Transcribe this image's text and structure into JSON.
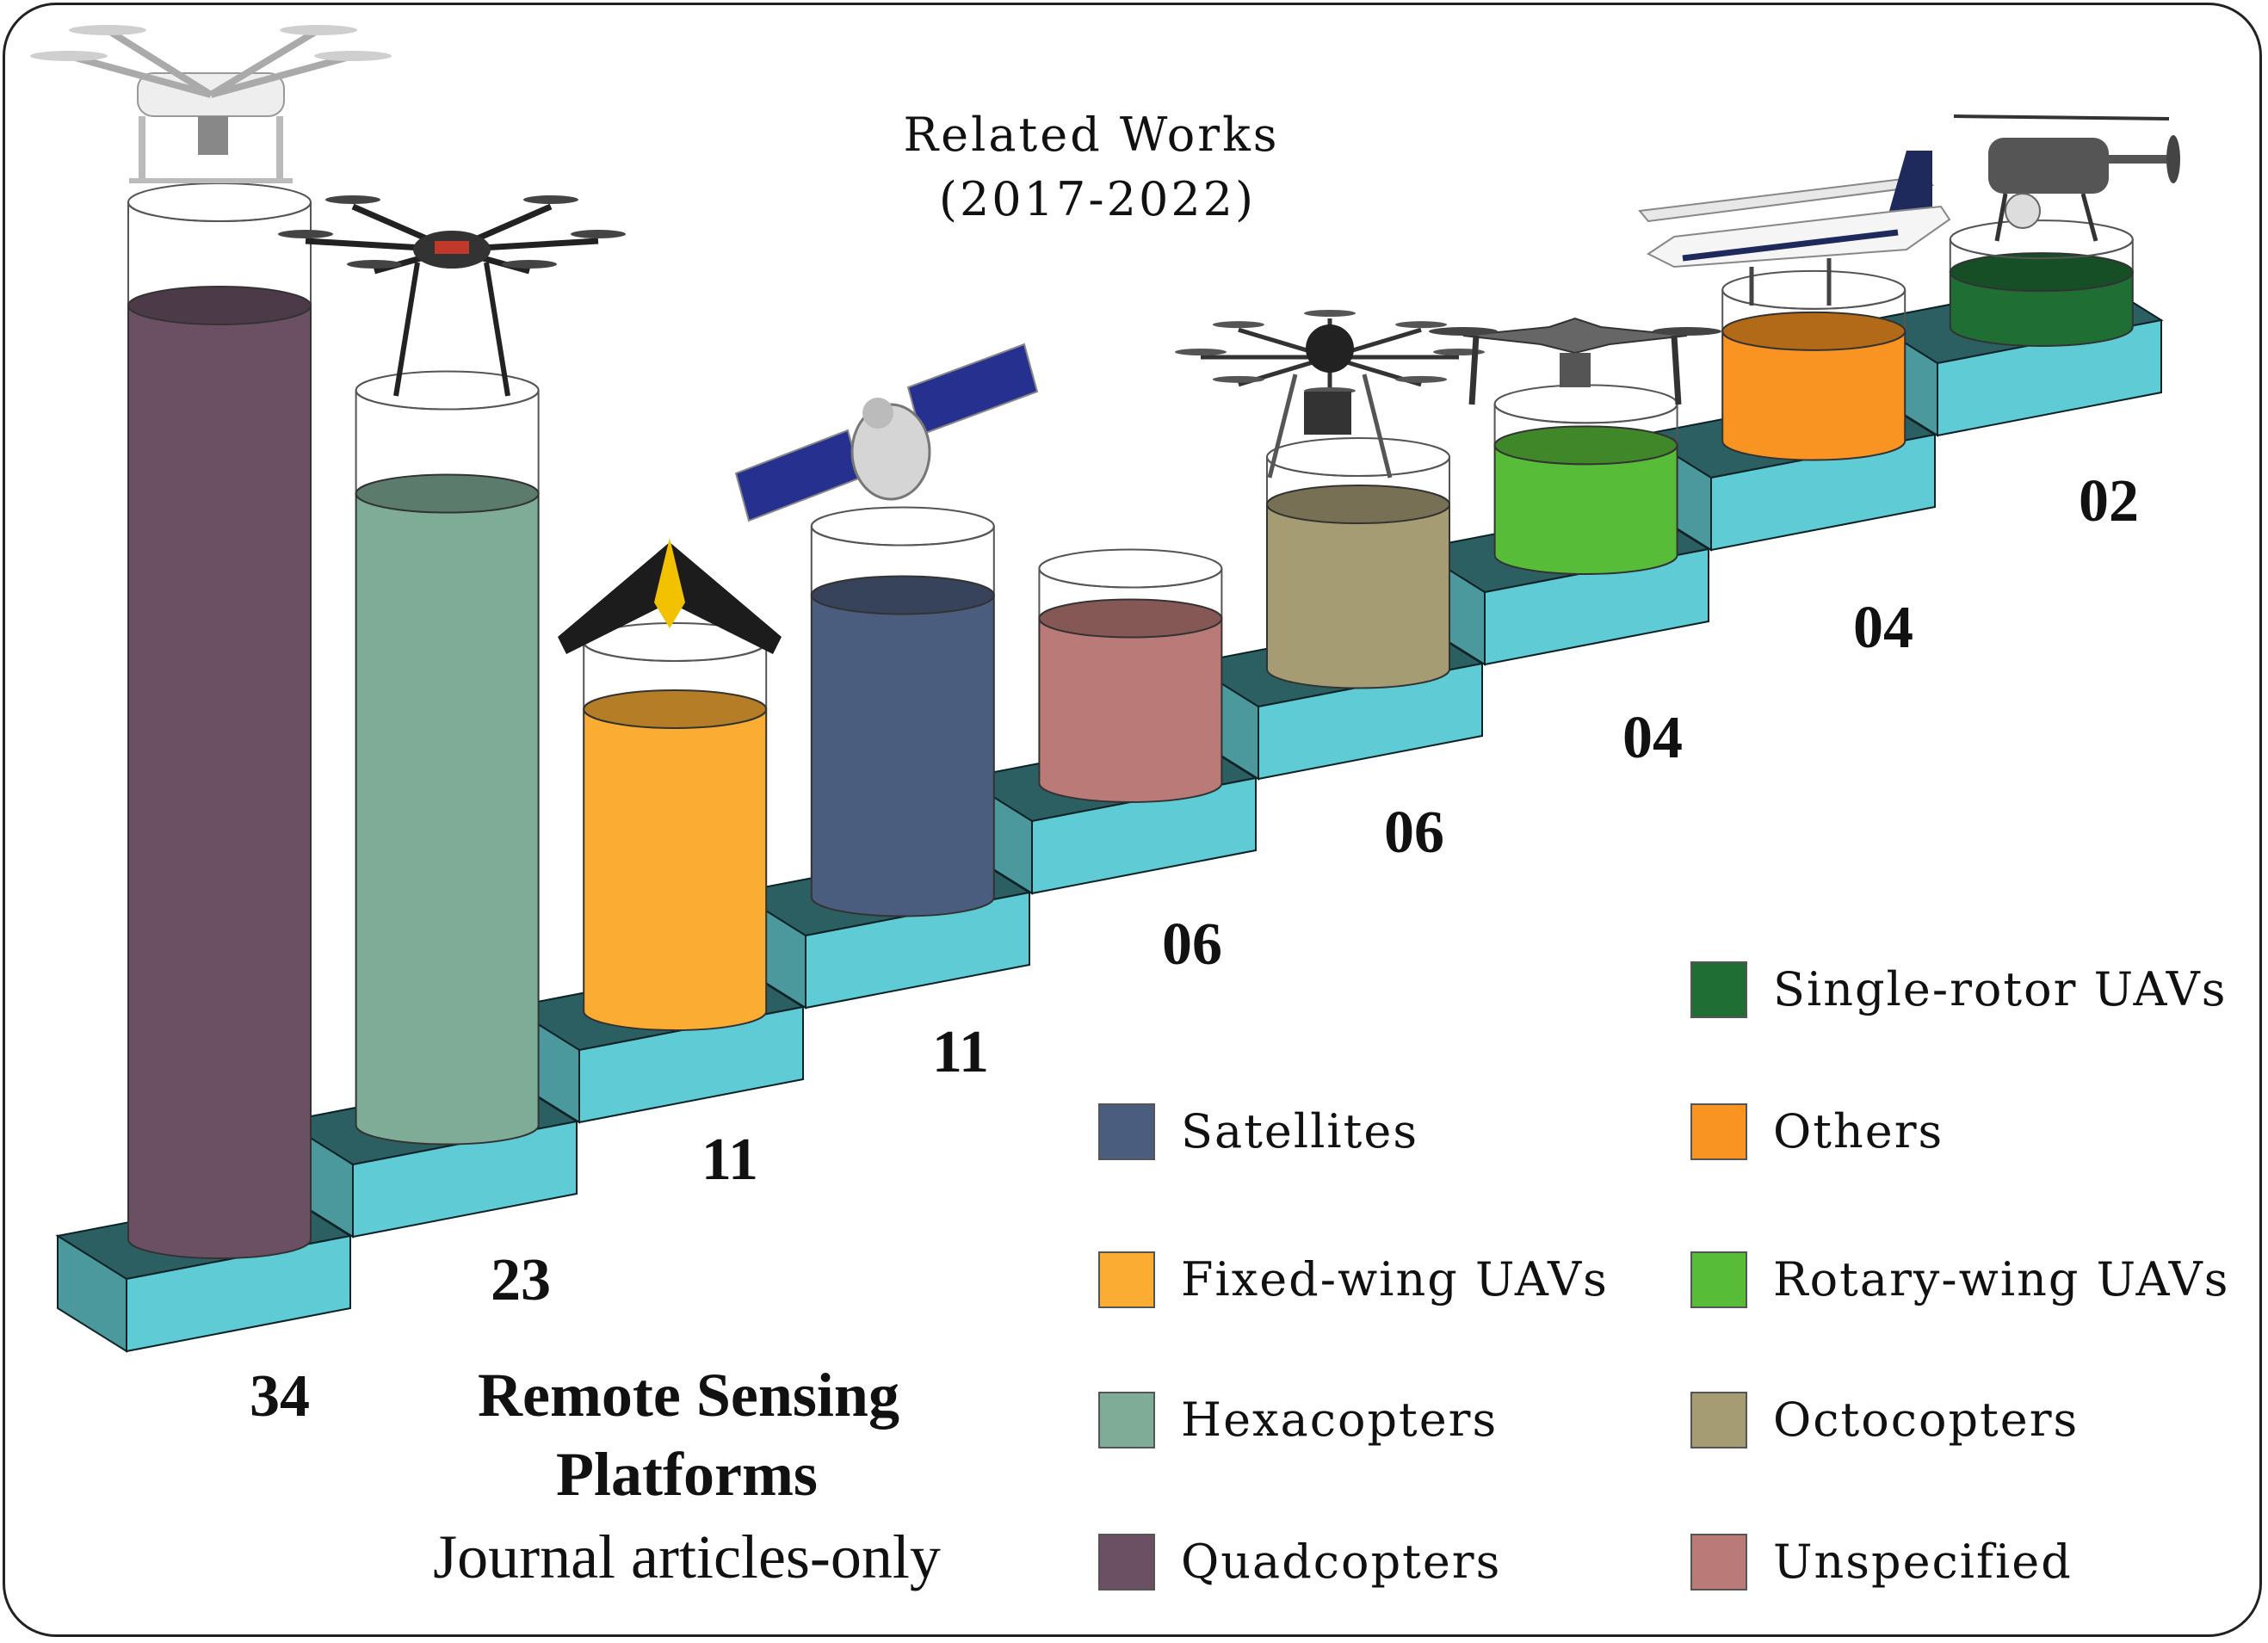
{
  "title": {
    "line1": "Related Works",
    "line2": "(2017-2022)"
  },
  "caption": {
    "line1": "Remote Sensing",
    "line2": "Platforms",
    "line3": "Journal articles-only"
  },
  "chart_data": {
    "type": "bar",
    "categories": [
      "Quadcopters",
      "Hexacopters",
      "Fixed-wing UAVs",
      "Satellites",
      "Unspecified",
      "Octocopters",
      "Rotary-wing UAVs",
      "Others",
      "Single-rotor UAVs"
    ],
    "values": [
      34,
      23,
      11,
      11,
      6,
      6,
      4,
      4,
      2
    ],
    "value_labels": [
      "34",
      "23",
      "11",
      "11",
      "06",
      "06",
      "04",
      "04",
      "02"
    ],
    "colors": [
      "#6b5064",
      "#7fac96",
      "#fbad33",
      "#4b5d7e",
      "#b97a78",
      "#a69c74",
      "#57bc37",
      "#f99321",
      "#1f6e34"
    ],
    "legend": [
      {
        "label": "Single-rotor UAVs",
        "color": "#1f6e34"
      },
      {
        "label": "Satellites",
        "color": "#4b5d7e"
      },
      {
        "label": "Others",
        "color": "#f99321"
      },
      {
        "label": "Fixed-wing UAVs",
        "color": "#fbad33"
      },
      {
        "label": "Rotary-wing UAVs",
        "color": "#57bc37"
      },
      {
        "label": "Hexacopters",
        "color": "#7fac96"
      },
      {
        "label": "Octocopters",
        "color": "#a69c74"
      },
      {
        "label": "Quadcopters",
        "color": "#6b5064"
      },
      {
        "label": "Unspecified",
        "color": "#b97a78"
      }
    ],
    "platform_icons": [
      "quadcopter-icon",
      "hexacopter-icon",
      "fixed-wing-icon",
      "satellite-icon",
      "octocopter-icon",
      "rotary-wing-icon",
      "airplane-icon",
      "single-rotor-icon"
    ]
  }
}
